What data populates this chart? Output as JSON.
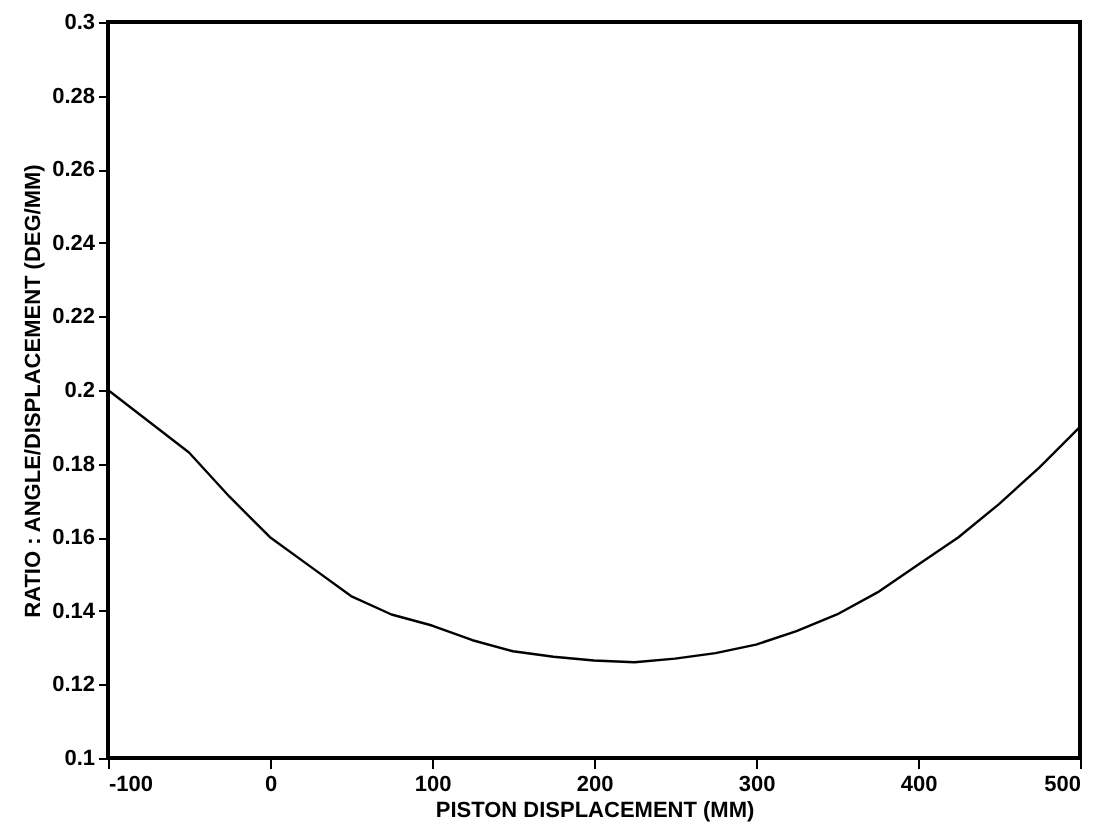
{
  "chart_data": {
    "type": "line",
    "xlabel": "PISTON DISPLACEMENT (MM)",
    "ylabel": "RATIO : ANGLE/DISPLACEMENT (DEG/MM)",
    "x": [
      -100,
      -75,
      -50,
      -25,
      0,
      25,
      50,
      75,
      100,
      125,
      150,
      175,
      200,
      225,
      250,
      275,
      300,
      325,
      350,
      375,
      400,
      425,
      450,
      475,
      500
    ],
    "series": [
      {
        "color": "#000000",
        "values": [
          0.2,
          0.1915,
          0.183,
          0.171,
          0.16,
          0.152,
          0.144,
          0.139,
          0.136,
          0.132,
          0.129,
          0.1275,
          0.1265,
          0.126,
          0.127,
          0.1285,
          0.1308,
          0.1345,
          0.139,
          0.145,
          0.1525,
          0.16,
          0.169,
          0.179,
          0.19
        ]
      }
    ],
    "xlim": [
      -100,
      500
    ],
    "xticks": [
      -100,
      0,
      100,
      200,
      300,
      400,
      500
    ],
    "ylim": [
      0.1,
      0.3
    ],
    "yticks": [
      0.1,
      0.12,
      0.14,
      0.16,
      0.18,
      0.2,
      0.22,
      0.24,
      0.26,
      0.28,
      0.3
    ],
    "grid": false,
    "legend": false,
    "marker": "none",
    "line_style": "solid"
  }
}
